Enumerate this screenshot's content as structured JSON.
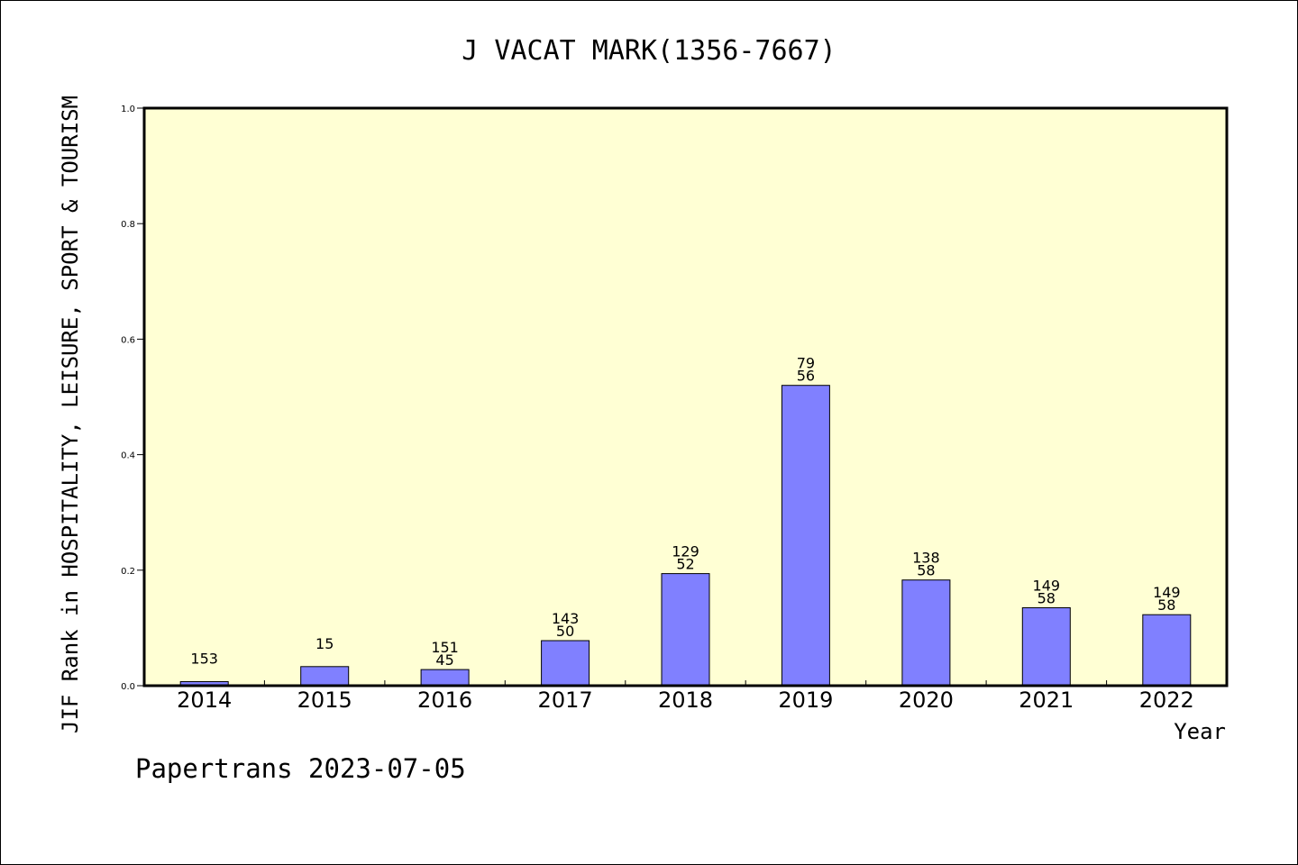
{
  "chart_data": {
    "type": "bar",
    "title": "J VACAT MARK(1356-7667)",
    "xlabel": "Year",
    "ylabel": "JIF Rank in HOSPITALITY, LEISURE, SPORT & TOURISM",
    "categories": [
      "2014",
      "2015",
      "2016",
      "2017",
      "2018",
      "2019",
      "2020",
      "2021",
      "2022"
    ],
    "values": [
      0.007,
      0.033,
      0.028,
      0.078,
      0.194,
      0.52,
      0.183,
      0.135,
      0.123
    ],
    "bar_labels": [
      {
        "top": "",
        "bottom": "153"
      },
      {
        "top": "",
        "bottom": "15"
      },
      {
        "top": "151",
        "bottom": "45"
      },
      {
        "top": "143",
        "bottom": "50"
      },
      {
        "top": "129",
        "bottom": "52"
      },
      {
        "top": "79",
        "bottom": "56"
      },
      {
        "top": "138",
        "bottom": "58"
      },
      {
        "top": "149",
        "bottom": "58"
      },
      {
        "top": "149",
        "bottom": "58"
      }
    ],
    "ylim": [
      0.0,
      1.0
    ],
    "yticks": [
      "0.0",
      "0.2",
      "0.4",
      "0.6",
      "0.8",
      "1.0"
    ],
    "grid": false,
    "colors": {
      "bar": "#8080ff",
      "plot_background": "#ffffd4",
      "axis": "#000000"
    }
  },
  "footer": {
    "credit": "Papertrans 2023-07-05"
  }
}
